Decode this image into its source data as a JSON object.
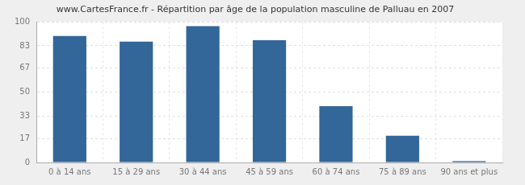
{
  "chart_data": {
    "type": "bar",
    "title": "www.CartesFrance.fr - Répartition par âge de la population masculine de Palluau en 2007",
    "categories": [
      "0 à 14 ans",
      "15 à 29 ans",
      "30 à 44 ans",
      "45 à 59 ans",
      "60 à 74 ans",
      "75 à 89 ans",
      "90 ans et plus"
    ],
    "values": [
      90,
      86,
      97,
      87,
      40,
      19,
      1
    ],
    "color": "#336699",
    "ylim": [
      0,
      100
    ],
    "yticks": [
      0,
      17,
      33,
      50,
      67,
      83,
      100
    ],
    "grid": true
  }
}
